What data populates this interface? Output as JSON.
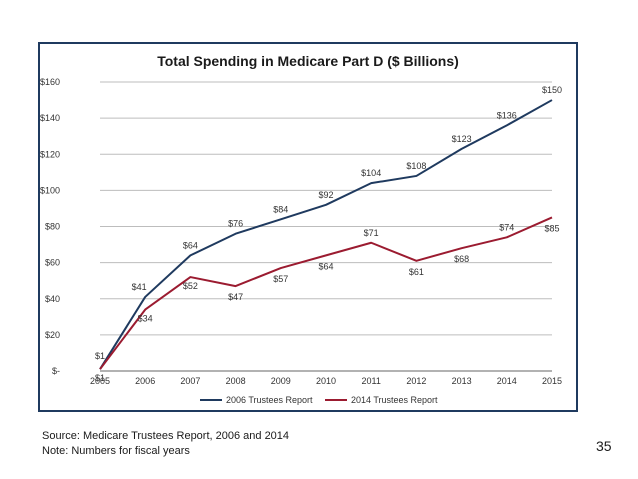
{
  "chart_data": {
    "type": "line",
    "title": "Total Spending in Medicare Part D ($ Billions)",
    "x": [
      "2005",
      "2006",
      "2007",
      "2008",
      "2009",
      "2010",
      "2011",
      "2012",
      "2013",
      "2014",
      "2015"
    ],
    "ylim": [
      0,
      160
    ],
    "yticks": [
      0,
      20,
      40,
      60,
      80,
      100,
      120,
      140,
      160
    ],
    "ytick_labels": [
      "$-",
      "$20",
      "$40",
      "$60",
      "$80",
      "$100",
      "$120",
      "$140",
      "$160"
    ],
    "grid": true,
    "legend_position": "bottom",
    "series": [
      {
        "name": "2006 Trustees Report",
        "color": "#1f3a5f",
        "values": [
          1,
          41,
          64,
          76,
          84,
          92,
          104,
          108,
          123,
          136,
          150
        ],
        "labels": [
          "$1",
          "$41",
          "$64",
          "$76",
          "$84",
          "$92",
          "$104",
          "$108",
          "$123",
          "$136",
          "$150"
        ]
      },
      {
        "name": "2014 Trustees Report",
        "color": "#9b1b30",
        "values": [
          1,
          34,
          52,
          47,
          57,
          64,
          71,
          61,
          68,
          74,
          85
        ],
        "labels": [
          "$1",
          "$34",
          "$52",
          "$47",
          "$57",
          "$64",
          "$71",
          "$61",
          "$68",
          "$74",
          "$85"
        ]
      }
    ]
  },
  "footer": {
    "source": "Source: Medicare Trustees Report, 2006 and 2014",
    "note": "Note: Numbers for fiscal years",
    "slide_number": "35"
  }
}
